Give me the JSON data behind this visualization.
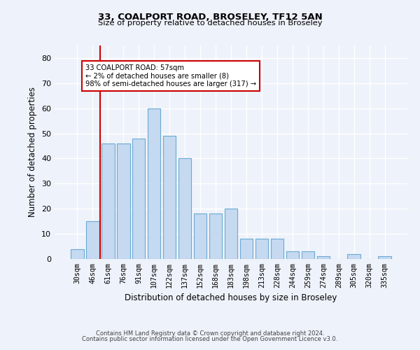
{
  "title1": "33, COALPORT ROAD, BROSELEY, TF12 5AN",
  "title2": "Size of property relative to detached houses in Broseley",
  "xlabel": "Distribution of detached houses by size in Broseley",
  "ylabel": "Number of detached properties",
  "categories": [
    "30sqm",
    "46sqm",
    "61sqm",
    "76sqm",
    "91sqm",
    "107sqm",
    "122sqm",
    "137sqm",
    "152sqm",
    "168sqm",
    "183sqm",
    "198sqm",
    "213sqm",
    "228sqm",
    "244sqm",
    "259sqm",
    "274sqm",
    "289sqm",
    "305sqm",
    "320sqm",
    "335sqm"
  ],
  "values": [
    4,
    15,
    46,
    46,
    48,
    60,
    49,
    40,
    18,
    18,
    20,
    8,
    8,
    8,
    3,
    3,
    1,
    0,
    2,
    0,
    1
  ],
  "bar_color": "#c5d9f0",
  "bar_edge_color": "#6aaad4",
  "annotation_text": "33 COALPORT ROAD: 57sqm\n← 2% of detached houses are smaller (8)\n98% of semi-detached houses are larger (317) →",
  "annotation_box_color": "white",
  "annotation_box_edge_color": "#cc0000",
  "vline_color": "#cc0000",
  "ylim": [
    0,
    85
  ],
  "yticks": [
    0,
    10,
    20,
    30,
    40,
    50,
    60,
    70,
    80
  ],
  "background_color": "#eef2fa",
  "grid_color": "white",
  "footer1": "Contains HM Land Registry data © Crown copyright and database right 2024.",
  "footer2": "Contains public sector information licensed under the Open Government Licence v3.0."
}
